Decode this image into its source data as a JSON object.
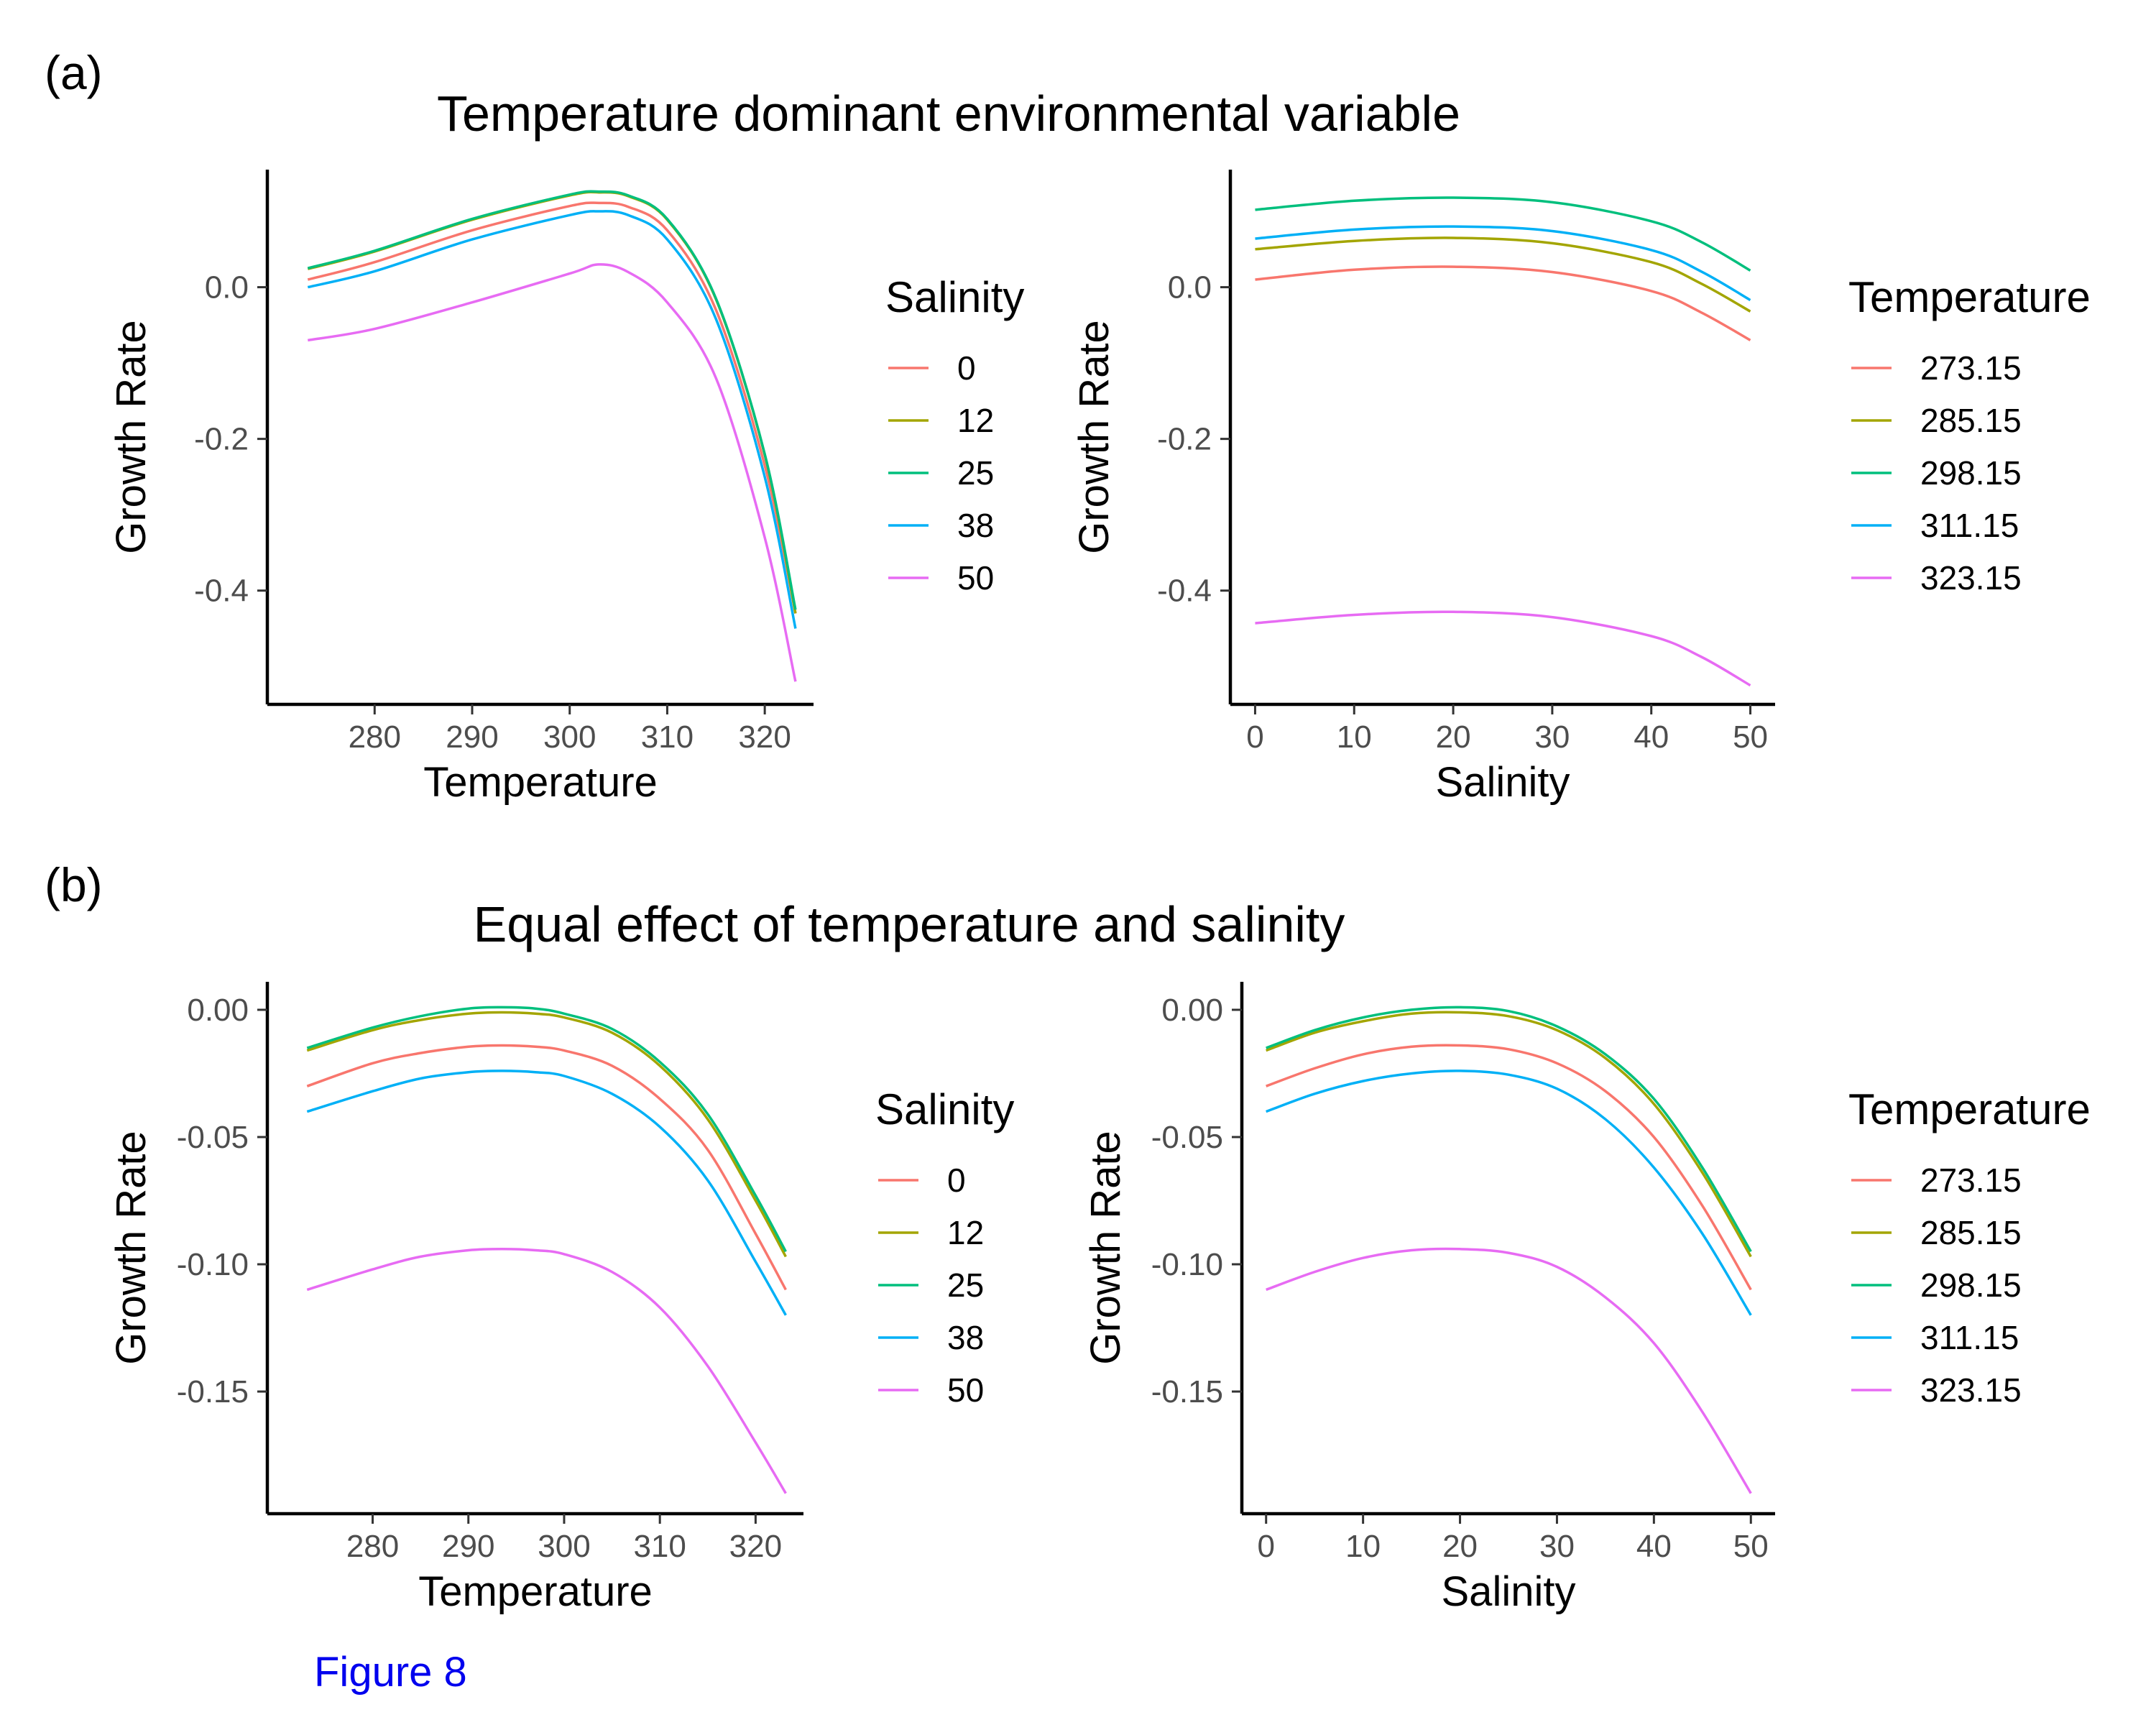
{
  "figure": {
    "caption": "Figure 8",
    "colors": {
      "caption": "#0000ee",
      "axis": "#000000",
      "tick_text": "#4d4d4d"
    },
    "panels": [
      {
        "label": "(a)",
        "title": "Temperature dominant environmental variable"
      },
      {
        "label": "(b)",
        "title": "Equal effect of temperature and salinity"
      }
    ]
  },
  "chart_data": [
    {
      "type": "line",
      "panel": "(a)",
      "title": "Temperature dominant environmental variable",
      "xlabel": "Temperature",
      "ylabel": "Growth Rate",
      "xlim": [
        269,
        325
      ],
      "ylim": [
        -0.55,
        0.155
      ],
      "xticks": [
        280,
        290,
        300,
        310,
        320
      ],
      "yticks": [
        0.0,
        -0.2,
        -0.4
      ],
      "ytick_labels": [
        "0.0",
        "-0.2",
        "-0.4"
      ],
      "grid": false,
      "legend": {
        "title": "Salinity",
        "placement": "right"
      },
      "series": [
        {
          "name": "0",
          "color": "#F8766D",
          "x": [
            273.15,
            280,
            290,
            300,
            303,
            306,
            310,
            315,
            320,
            323.15
          ],
          "y": [
            0.01,
            0.033,
            0.075,
            0.107,
            0.111,
            0.106,
            0.075,
            -0.03,
            -0.235,
            -0.43
          ]
        },
        {
          "name": "12",
          "color": "#A3A500",
          "x": [
            273.15,
            280,
            290,
            300,
            303,
            306,
            310,
            315,
            320,
            323.15
          ],
          "y": [
            0.024,
            0.047,
            0.089,
            0.121,
            0.125,
            0.12,
            0.089,
            -0.016,
            -0.221,
            -0.43
          ]
        },
        {
          "name": "25",
          "color": "#00BF7D",
          "x": [
            273.15,
            280,
            290,
            300,
            303,
            306,
            310,
            315,
            320,
            323.15
          ],
          "y": [
            0.025,
            0.048,
            0.09,
            0.122,
            0.126,
            0.121,
            0.09,
            -0.015,
            -0.22,
            -0.425
          ]
        },
        {
          "name": "38",
          "color": "#00B0F6",
          "x": [
            273.15,
            280,
            290,
            300,
            303,
            306,
            310,
            315,
            320,
            323.15
          ],
          "y": [
            0.0,
            0.021,
            0.063,
            0.095,
            0.1,
            0.095,
            0.063,
            -0.042,
            -0.25,
            -0.45
          ]
        },
        {
          "name": "50",
          "color": "#E76BF3",
          "x": [
            273.15,
            280,
            290,
            300,
            303,
            306,
            310,
            315,
            320,
            323.15
          ],
          "y": [
            -0.07,
            -0.055,
            -0.02,
            0.018,
            0.03,
            0.02,
            -0.02,
            -0.12,
            -0.33,
            -0.52
          ]
        }
      ]
    },
    {
      "type": "line",
      "panel": "(a)",
      "xlabel": "Salinity",
      "ylabel": "Growth Rate",
      "xlim": [
        -2.5,
        52.5
      ],
      "ylim": [
        -0.55,
        0.155
      ],
      "xticks": [
        0,
        10,
        20,
        30,
        40,
        50
      ],
      "yticks": [
        0.0,
        -0.2,
        -0.4
      ],
      "ytick_labels": [
        "0.0",
        "-0.2",
        "-0.4"
      ],
      "grid": false,
      "legend": {
        "title": "Temperature",
        "placement": "right"
      },
      "series": [
        {
          "name": "273.15",
          "color": "#F8766D",
          "x": [
            0,
            10,
            20,
            30,
            40,
            45,
            50
          ],
          "y": [
            0.01,
            0.023,
            0.027,
            0.02,
            -0.005,
            -0.033,
            -0.07
          ]
        },
        {
          "name": "285.15",
          "color": "#A3A500",
          "x": [
            0,
            10,
            20,
            30,
            40,
            45,
            50
          ],
          "y": [
            0.05,
            0.061,
            0.065,
            0.058,
            0.033,
            0.005,
            -0.032
          ]
        },
        {
          "name": "298.15",
          "color": "#00BF7D",
          "x": [
            0,
            10,
            20,
            30,
            40,
            45,
            50
          ],
          "y": [
            0.102,
            0.114,
            0.118,
            0.112,
            0.087,
            0.06,
            0.022
          ]
        },
        {
          "name": "311.15",
          "color": "#00B0F6",
          "x": [
            0,
            10,
            20,
            30,
            40,
            45,
            50
          ],
          "y": [
            0.064,
            0.076,
            0.08,
            0.074,
            0.049,
            0.021,
            -0.017
          ]
        },
        {
          "name": "323.15",
          "color": "#E76BF3",
          "x": [
            0,
            10,
            20,
            30,
            40,
            45,
            50
          ],
          "y": [
            -0.443,
            -0.432,
            -0.428,
            -0.435,
            -0.46,
            -0.487,
            -0.525
          ]
        }
      ]
    },
    {
      "type": "line",
      "panel": "(b)",
      "title": "Equal effect of temperature and salinity",
      "xlabel": "Temperature",
      "ylabel": "Growth Rate",
      "xlim": [
        269,
        325
      ],
      "ylim": [
        -0.198,
        0.011
      ],
      "xticks": [
        280,
        290,
        300,
        310,
        320
      ],
      "yticks": [
        0.0,
        -0.05,
        -0.1,
        -0.15
      ],
      "ytick_labels": [
        "0.00",
        "-0.05",
        "-0.10",
        "-0.15"
      ],
      "grid": false,
      "legend": {
        "title": "Salinity",
        "placement": "right"
      },
      "series": [
        {
          "name": "0",
          "color": "#F8766D",
          "x": [
            273.15,
            280,
            285,
            290,
            293.5,
            297,
            300,
            305,
            310,
            315,
            320,
            323.15
          ],
          "y": [
            -0.03,
            -0.021,
            -0.017,
            -0.0145,
            -0.014,
            -0.0145,
            -0.016,
            -0.022,
            -0.035,
            -0.055,
            -0.088,
            -0.11
          ]
        },
        {
          "name": "12",
          "color": "#A3A500",
          "x": [
            273.15,
            280,
            285,
            290,
            293.5,
            297,
            300,
            305,
            310,
            315,
            320,
            323.15
          ],
          "y": [
            -0.016,
            -0.008,
            -0.004,
            -0.0015,
            -0.001,
            -0.0015,
            -0.003,
            -0.009,
            -0.022,
            -0.043,
            -0.075,
            -0.097
          ]
        },
        {
          "name": "25",
          "color": "#00BF7D",
          "x": [
            273.15,
            280,
            285,
            290,
            293.5,
            297,
            300,
            305,
            310,
            315,
            320,
            323.15
          ],
          "y": [
            -0.015,
            -0.007,
            -0.0025,
            0.0005,
            0.001,
            0.0005,
            -0.0015,
            -0.0075,
            -0.0205,
            -0.041,
            -0.073,
            -0.095
          ]
        },
        {
          "name": "38",
          "color": "#00B0F6",
          "x": [
            273.15,
            280,
            285,
            290,
            293.5,
            297,
            300,
            305,
            310,
            315,
            320,
            323.15
          ],
          "y": [
            -0.04,
            -0.032,
            -0.027,
            -0.0245,
            -0.024,
            -0.0245,
            -0.026,
            -0.033,
            -0.046,
            -0.067,
            -0.099,
            -0.12
          ]
        },
        {
          "name": "50",
          "color": "#E76BF3",
          "x": [
            273.15,
            280,
            285,
            290,
            293.5,
            297,
            300,
            305,
            310,
            315,
            320,
            323.15
          ],
          "y": [
            -0.11,
            -0.102,
            -0.097,
            -0.0945,
            -0.094,
            -0.0945,
            -0.096,
            -0.103,
            -0.117,
            -0.14,
            -0.17,
            -0.19
          ]
        }
      ]
    },
    {
      "type": "line",
      "panel": "(b)",
      "xlabel": "Salinity",
      "ylabel": "Growth Rate",
      "xlim": [
        -2.5,
        52.5
      ],
      "ylim": [
        -0.198,
        0.011
      ],
      "xticks": [
        0,
        10,
        20,
        30,
        40,
        50
      ],
      "yticks": [
        0.0,
        -0.05,
        -0.1,
        -0.15
      ],
      "ytick_labels": [
        "0.00",
        "-0.05",
        "-0.10",
        "-0.15"
      ],
      "grid": false,
      "legend": {
        "title": "Temperature",
        "placement": "right"
      },
      "series": [
        {
          "name": "273.15",
          "color": "#F8766D",
          "x": [
            0,
            5,
            10,
            15,
            20,
            25,
            30,
            35,
            40,
            45,
            50
          ],
          "y": [
            -0.03,
            -0.023,
            -0.0175,
            -0.0145,
            -0.014,
            -0.0155,
            -0.021,
            -0.032,
            -0.05,
            -0.077,
            -0.11
          ]
        },
        {
          "name": "285.15",
          "color": "#A3A500",
          "x": [
            0,
            5,
            10,
            15,
            20,
            25,
            30,
            35,
            40,
            45,
            50
          ],
          "y": [
            -0.016,
            -0.009,
            -0.0045,
            -0.0015,
            -0.001,
            -0.0025,
            -0.008,
            -0.019,
            -0.037,
            -0.064,
            -0.097
          ]
        },
        {
          "name": "298.15",
          "color": "#00BF7D",
          "x": [
            0,
            5,
            10,
            15,
            20,
            25,
            30,
            35,
            40,
            45,
            50
          ],
          "y": [
            -0.015,
            -0.008,
            -0.003,
            0.0,
            0.001,
            -0.0005,
            -0.0065,
            -0.0175,
            -0.035,
            -0.062,
            -0.095
          ]
        },
        {
          "name": "311.15",
          "color": "#00B0F6",
          "x": [
            0,
            5,
            10,
            15,
            20,
            25,
            30,
            35,
            40,
            45,
            50
          ],
          "y": [
            -0.04,
            -0.033,
            -0.028,
            -0.025,
            -0.024,
            -0.0255,
            -0.031,
            -0.043,
            -0.062,
            -0.088,
            -0.12
          ]
        },
        {
          "name": "323.15",
          "color": "#E76BF3",
          "x": [
            0,
            5,
            10,
            15,
            20,
            25,
            30,
            35,
            40,
            45,
            50
          ],
          "y": [
            -0.11,
            -0.103,
            -0.0975,
            -0.0945,
            -0.094,
            -0.0955,
            -0.101,
            -0.113,
            -0.131,
            -0.158,
            -0.19
          ]
        }
      ]
    }
  ]
}
